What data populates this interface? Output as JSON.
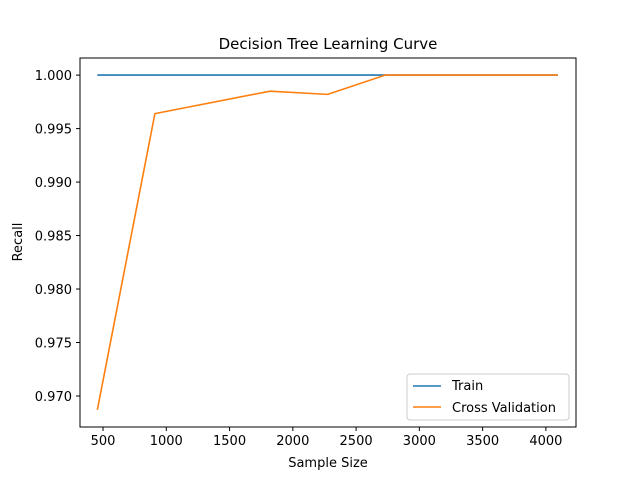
{
  "chart_data": {
    "type": "line",
    "title": "Decision Tree Learning Curve",
    "xlabel": "Sample Size",
    "ylabel": "Recall",
    "xlim": [
      318,
      4238
    ],
    "ylim": [
      0.9671,
      1.0016
    ],
    "xticks": [
      500,
      1000,
      1500,
      2000,
      2500,
      3000,
      3500,
      4000
    ],
    "yticks": [
      0.97,
      0.975,
      0.98,
      0.985,
      0.99,
      0.995,
      1.0
    ],
    "xtick_labels": [
      "500",
      "1000",
      "1500",
      "2000",
      "2500",
      "3000",
      "3500",
      "4000"
    ],
    "ytick_labels": [
      "0.970",
      "0.975",
      "0.980",
      "0.985",
      "0.990",
      "0.995",
      "1.000"
    ],
    "grid": false,
    "legend_position": "lower-right",
    "series": [
      {
        "name": "Train",
        "color": "#1f77b4",
        "x": [
          455,
          910,
          1365,
          1820,
          2275,
          2730,
          3185,
          3640,
          4095
        ],
        "y": [
          1.0,
          1.0,
          1.0,
          1.0,
          1.0,
          1.0,
          1.0,
          1.0,
          1.0
        ]
      },
      {
        "name": "Cross Validation",
        "color": "#ff7f0e",
        "x": [
          455,
          910,
          1820,
          2275,
          2730,
          4095
        ],
        "y": [
          0.9687,
          0.9964,
          0.9985,
          0.9982,
          1.0,
          1.0
        ]
      }
    ]
  }
}
